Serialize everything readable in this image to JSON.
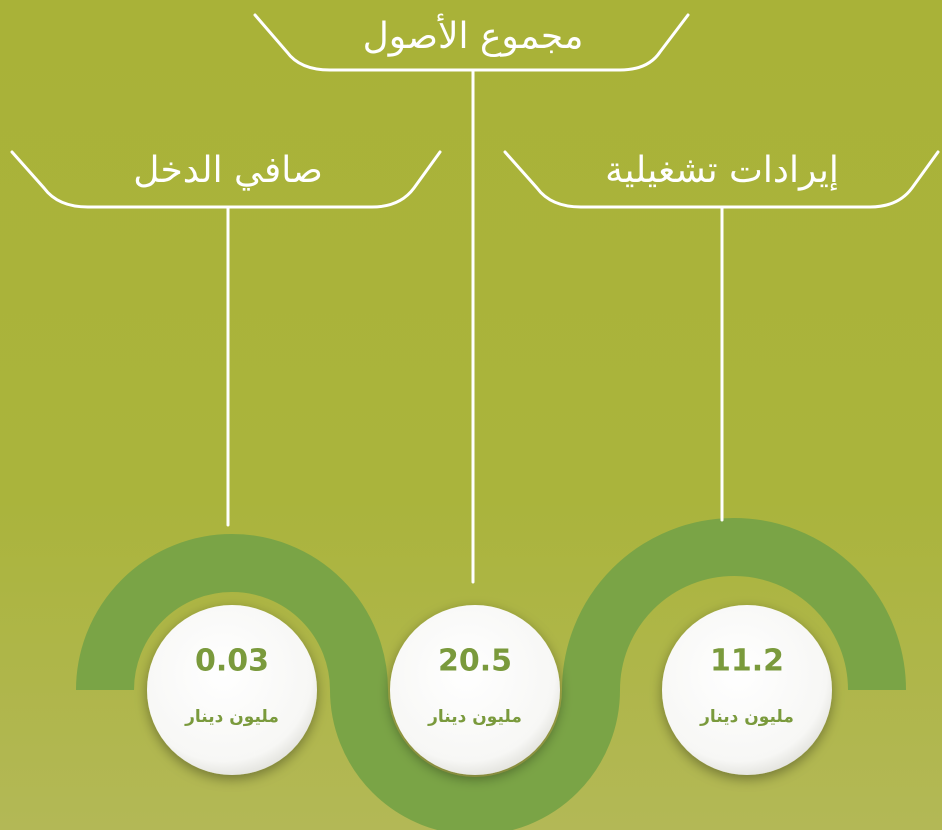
{
  "items": [
    {
      "label": "صافي الدخل",
      "value": 0.03,
      "unit": "مليون دينار"
    },
    {
      "label": "مجموع الأصول",
      "value": 20.5,
      "unit": "مليون دينار"
    },
    {
      "label": "إيرادات تشغيلية",
      "value": 11.2,
      "unit": "مليون دينار"
    }
  ]
}
